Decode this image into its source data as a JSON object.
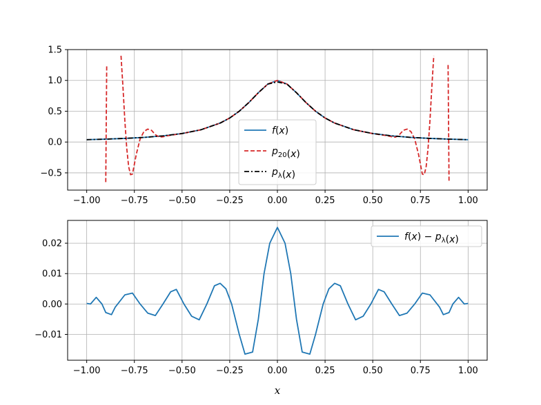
{
  "chart_data": [
    {
      "type": "line",
      "title": "",
      "xlabel": "",
      "ylabel": "",
      "xlim": [
        -1.1,
        1.1
      ],
      "ylim": [
        -0.78,
        1.5
      ],
      "grid": true,
      "legend_position": "lower-center",
      "x_ticks": [
        -1.0,
        -0.75,
        -0.5,
        -0.25,
        0.0,
        0.25,
        0.5,
        0.75,
        1.0
      ],
      "x_tick_labels": [
        "−1.00",
        "−0.75",
        "−0.50",
        "−0.25",
        "0.00",
        "0.25",
        "0.50",
        "0.75",
        "1.00"
      ],
      "y_ticks": [
        -0.5,
        0.0,
        0.5,
        1.0,
        1.5
      ],
      "y_tick_labels": [
        "−0.5",
        "0.0",
        "0.5",
        "1.0",
        "1.5"
      ],
      "series": [
        {
          "name": "f(x)",
          "legend_parts": [
            {
              "t": "f",
              "it": true
            },
            {
              "t": "(",
              "it": false
            },
            {
              "t": "x",
              "it": true
            },
            {
              "t": ")",
              "it": false
            }
          ],
          "color": "#1f77b4",
          "style": "solid",
          "x": [
            -1.0,
            -0.9,
            -0.8,
            -0.7,
            -0.6,
            -0.5,
            -0.4,
            -0.3,
            -0.25,
            -0.2,
            -0.15,
            -0.1,
            -0.05,
            0.0,
            0.05,
            0.1,
            0.15,
            0.2,
            0.25,
            0.3,
            0.4,
            0.5,
            0.6,
            0.7,
            0.8,
            0.9,
            1.0
          ],
          "y": [
            0.038,
            0.047,
            0.059,
            0.075,
            0.1,
            0.138,
            0.2,
            0.308,
            0.39,
            0.5,
            0.64,
            0.8,
            0.941,
            1.0,
            0.941,
            0.8,
            0.64,
            0.5,
            0.39,
            0.308,
            0.2,
            0.138,
            0.1,
            0.075,
            0.059,
            0.047,
            0.038
          ]
        },
        {
          "name": "p20(x)",
          "legend_parts": [
            {
              "t": "p",
              "it": true
            },
            {
              "t": "20",
              "sub": true
            },
            {
              "t": "(",
              "it": false
            },
            {
              "t": "x",
              "it": true
            },
            {
              "t": ")",
              "it": false
            }
          ],
          "color": "#d62728",
          "style": "dashed",
          "x": [
            -0.9,
            -0.895,
            -0.89,
            -0.885,
            -0.88,
            -0.875,
            -0.87,
            -0.865,
            -0.86,
            -0.855,
            -0.85,
            -0.845,
            -0.84,
            -0.835,
            -0.83,
            -0.825,
            -0.82,
            null,
            -0.82,
            -0.81,
            -0.8,
            -0.79,
            -0.78,
            -0.77,
            -0.76,
            -0.74,
            -0.72,
            -0.7,
            -0.68,
            -0.66,
            -0.64,
            -0.62,
            -0.6,
            -0.58,
            -0.56,
            -0.5,
            -0.4,
            -0.3,
            -0.25,
            -0.2,
            -0.15,
            -0.1,
            -0.05,
            0.0,
            0.05,
            0.1,
            0.15,
            0.2,
            0.25,
            0.3,
            0.4,
            0.5,
            0.56,
            0.58,
            0.6,
            0.62,
            0.64,
            0.66,
            0.68,
            0.7,
            0.72,
            0.74,
            0.76,
            0.77,
            0.78,
            0.79,
            0.8,
            0.81,
            0.82,
            null,
            0.82,
            0.825,
            0.83,
            0.835,
            0.84,
            0.845,
            0.85,
            0.855,
            0.86,
            0.865,
            0.87,
            0.875,
            0.88,
            0.885,
            0.89,
            0.895,
            0.9
          ],
          "y": [
            -0.65,
            1.25,
            null,
            null,
            null,
            null,
            null,
            null,
            null,
            null,
            null,
            null,
            null,
            null,
            null,
            null,
            null,
            null,
            1.4,
            0.9,
            0.35,
            -0.1,
            -0.4,
            -0.53,
            -0.52,
            -0.2,
            0.05,
            0.17,
            0.21,
            0.19,
            0.12,
            0.08,
            0.085,
            0.1,
            0.11,
            0.137,
            0.2,
            0.308,
            0.39,
            0.5,
            0.64,
            0.8,
            0.941,
            1.0,
            0.941,
            0.8,
            0.64,
            0.5,
            0.39,
            0.308,
            0.2,
            0.137,
            0.11,
            0.1,
            0.085,
            0.08,
            0.12,
            0.19,
            0.21,
            0.17,
            0.05,
            -0.2,
            -0.52,
            -0.53,
            -0.4,
            -0.1,
            0.35,
            0.9,
            1.4,
            null,
            null,
            null,
            null,
            null,
            null,
            null,
            null,
            null,
            null,
            null,
            null,
            null,
            null,
            null,
            null,
            1.25,
            -0.65
          ]
        },
        {
          "name": "pλ(x)",
          "legend_parts": [
            {
              "t": "p",
              "it": true
            },
            {
              "t": "λ",
              "sub": true
            },
            {
              "t": "(",
              "it": false
            },
            {
              "t": "x",
              "it": true
            },
            {
              "t": ")",
              "it": false
            }
          ],
          "color": "#000000",
          "style": "dashdot",
          "x": [
            -1.0,
            -0.9,
            -0.8,
            -0.7,
            -0.6,
            -0.5,
            -0.4,
            -0.3,
            -0.25,
            -0.2,
            -0.15,
            -0.1,
            -0.05,
            0.0,
            0.05,
            0.1,
            0.15,
            0.2,
            0.25,
            0.3,
            0.4,
            0.5,
            0.6,
            0.7,
            0.8,
            0.9,
            1.0
          ],
          "y": [
            0.038,
            0.047,
            0.059,
            0.075,
            0.1,
            0.138,
            0.2,
            0.308,
            0.39,
            0.5,
            0.64,
            0.8,
            0.941,
            0.975,
            0.941,
            0.8,
            0.64,
            0.5,
            0.39,
            0.308,
            0.2,
            0.138,
            0.1,
            0.075,
            0.059,
            0.047,
            0.038
          ]
        }
      ]
    },
    {
      "type": "line",
      "title": "",
      "xlabel": "x",
      "ylabel": "",
      "xlim": [
        -1.1,
        1.1
      ],
      "ylim": [
        -0.0185,
        0.0275
      ],
      "grid": true,
      "legend_position": "upper-right",
      "x_ticks": [
        -1.0,
        -0.75,
        -0.5,
        -0.25,
        0.0,
        0.25,
        0.5,
        0.75,
        1.0
      ],
      "x_tick_labels": [
        "−1.00",
        "−0.75",
        "−0.50",
        "−0.25",
        "0.00",
        "0.25",
        "0.50",
        "0.75",
        "1.00"
      ],
      "y_ticks": [
        -0.01,
        0.0,
        0.01,
        0.02
      ],
      "y_tick_labels": [
        "−0.01",
        "0.00",
        "0.01",
        "0.02"
      ],
      "series": [
        {
          "name": "f(x) − pλ(x)",
          "legend_parts": [
            {
              "t": "f",
              "it": true
            },
            {
              "t": "(",
              "it": false
            },
            {
              "t": "x",
              "it": true
            },
            {
              "t": ") − ",
              "it": false
            },
            {
              "t": "p",
              "it": true
            },
            {
              "t": "λ",
              "sub": true
            },
            {
              "t": "(",
              "it": false
            },
            {
              "t": "x",
              "it": true
            },
            {
              "t": ")",
              "it": false
            }
          ],
          "color": "#1f77b4",
          "style": "solid",
          "x": [
            -1.0,
            -0.98,
            -0.95,
            -0.92,
            -0.9,
            -0.87,
            -0.85,
            -0.8,
            -0.76,
            -0.72,
            -0.68,
            -0.64,
            -0.6,
            -0.56,
            -0.53,
            -0.49,
            -0.45,
            -0.41,
            -0.37,
            -0.33,
            -0.3,
            -0.27,
            -0.24,
            -0.2,
            -0.17,
            -0.13,
            -0.1,
            -0.07,
            -0.04,
            0.0,
            0.04,
            0.07,
            0.1,
            0.13,
            0.17,
            0.2,
            0.24,
            0.27,
            0.3,
            0.33,
            0.37,
            0.41,
            0.45,
            0.49,
            0.53,
            0.56,
            0.6,
            0.64,
            0.68,
            0.72,
            0.76,
            0.8,
            0.85,
            0.87,
            0.9,
            0.92,
            0.95,
            0.98,
            1.0
          ],
          "y": [
            0.0002,
            0.0,
            0.0022,
            0.0,
            -0.0028,
            -0.0035,
            -0.001,
            0.003,
            0.0036,
            0.0,
            -0.003,
            -0.0038,
            0.0,
            0.004,
            0.0048,
            0.0,
            -0.004,
            -0.0052,
            0.0,
            0.006,
            0.0068,
            0.005,
            0.0,
            -0.01,
            -0.0165,
            -0.0158,
            -0.005,
            0.01,
            0.02,
            0.0252,
            0.02,
            0.01,
            -0.005,
            -0.0158,
            -0.0165,
            -0.01,
            0.0,
            0.005,
            0.0068,
            0.006,
            0.0,
            -0.0052,
            -0.004,
            0.0,
            0.0048,
            0.004,
            0.0,
            -0.0038,
            -0.003,
            0.0,
            0.0036,
            0.003,
            -0.001,
            -0.0035,
            -0.0028,
            0.0,
            0.0022,
            0.0,
            0.0002
          ]
        }
      ]
    }
  ]
}
